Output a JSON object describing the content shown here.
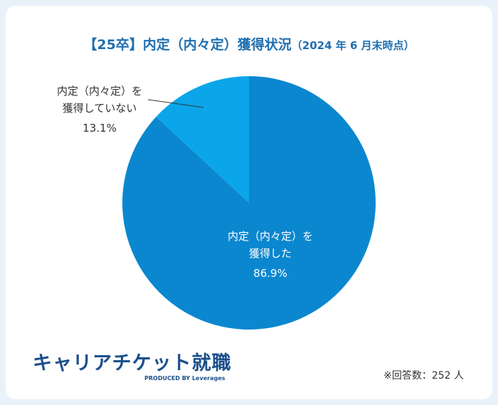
{
  "chart_data": {
    "type": "pie",
    "title": "【25卒】内定（内々定）獲得状況",
    "subtitle": "（2024 年 6 月末時点）",
    "categories": [
      "内定（内々定）を獲得した",
      "内定（内々定）を獲得していない"
    ],
    "values": [
      86.9,
      13.1
    ],
    "value_labels": [
      "86.9%",
      "13.1%"
    ],
    "colors": [
      "#0b87cf",
      "#0ba6ea"
    ],
    "note": "※回答数：252 人",
    "logo": "キャリアチケット就職",
    "logo_sub": "PRODUCED BY Leverages"
  }
}
